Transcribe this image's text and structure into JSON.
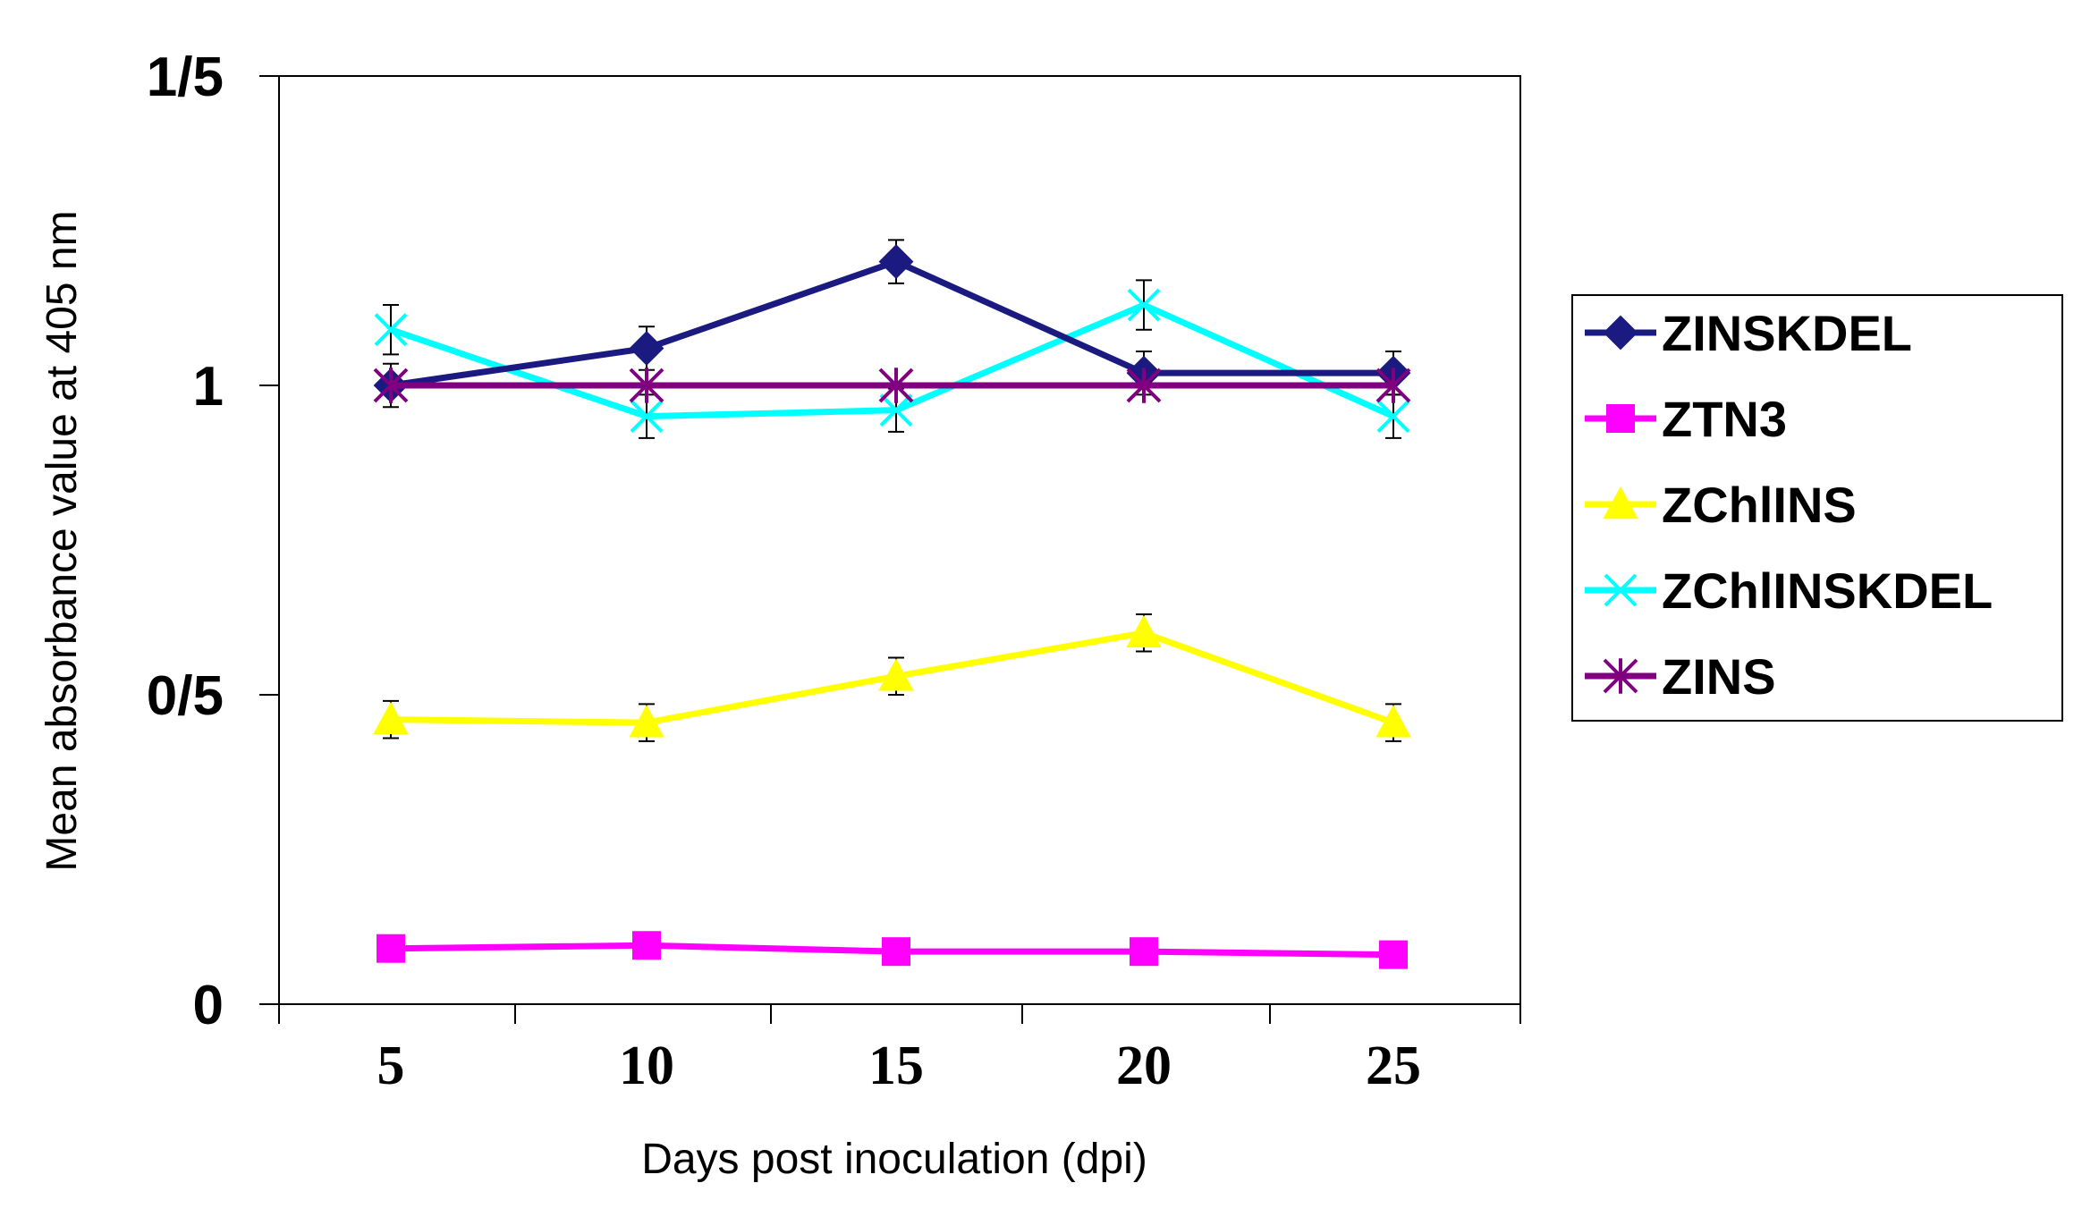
{
  "chart_data": {
    "type": "line",
    "title": "",
    "xlabel": "Days post inoculation (dpi)",
    "ylabel": "Mean absorbance value at 405 nm",
    "categories": [
      "5",
      "10",
      "15",
      "20",
      "25"
    ],
    "x": [
      5,
      10,
      15,
      20,
      25
    ],
    "ylim": [
      0,
      1.5
    ],
    "yticks": [
      {
        "value": 0,
        "label": "0"
      },
      {
        "value": 0.5,
        "label": "0/5"
      },
      {
        "value": 1,
        "label": "1"
      },
      {
        "value": 1.5,
        "label": "1/5"
      }
    ],
    "grid": false,
    "legend_position": "right",
    "series": [
      {
        "name": "ZINSKDEL",
        "color": "#1a1a80",
        "marker": "diamond",
        "values": [
          1.0,
          1.06,
          1.2,
          1.02,
          1.02
        ],
        "errors": [
          0.035,
          0.035,
          0.035,
          0.035,
          0.035
        ]
      },
      {
        "name": "ZTN3",
        "color": "#ff00ff",
        "marker": "square",
        "values": [
          0.09,
          0.095,
          0.085,
          0.085,
          0.08
        ],
        "errors": [
          0,
          0,
          0,
          0,
          0
        ]
      },
      {
        "name": "ZChlINS",
        "color": "#ffff00",
        "marker": "triangle",
        "values": [
          0.46,
          0.455,
          0.53,
          0.6,
          0.455
        ],
        "errors": [
          0.03,
          0.03,
          0.03,
          0.03,
          0.03
        ]
      },
      {
        "name": "ZChlINSKDEL",
        "color": "#00ffff",
        "marker": "x",
        "values": [
          1.09,
          0.95,
          0.96,
          1.13,
          0.95
        ],
        "errors": [
          0.04,
          0.035,
          0.035,
          0.04,
          0.035
        ]
      },
      {
        "name": "ZINS",
        "color": "#800080",
        "marker": "asterisk",
        "values": [
          1.0,
          1.0,
          1.0,
          1.0,
          1.0
        ],
        "errors": [
          0,
          0,
          0,
          0,
          0
        ]
      }
    ]
  }
}
